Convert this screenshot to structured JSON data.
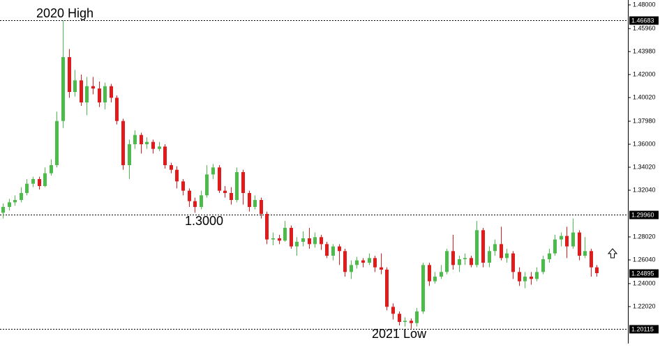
{
  "chart_data": {
    "type": "candlestick",
    "up_color": "#4cbb4c",
    "down_color": "#e01b1b",
    "open": [
      1.301,
      1.306,
      1.31,
      1.312,
      1.318,
      1.326,
      1.33,
      1.324,
      1.335,
      1.342,
      1.38,
      1.435,
      1.405,
      1.415,
      1.396,
      1.41,
      1.408,
      1.396,
      1.41,
      1.4,
      1.38,
      1.342,
      1.36,
      1.368,
      1.36,
      1.362,
      1.356,
      1.358,
      1.342,
      1.338,
      1.328,
      1.32,
      1.311,
      1.306,
      1.316,
      1.334,
      1.34,
      1.32,
      1.318,
      1.312,
      1.336,
      1.318,
      1.306,
      1.312,
      1.3,
      1.278,
      1.279,
      1.277,
      1.288,
      1.272,
      1.276,
      1.279,
      1.274,
      1.28,
      1.274,
      1.264,
      1.272,
      1.268,
      1.25,
      1.256,
      1.26,
      1.258,
      1.262,
      1.254,
      1.252,
      1.22,
      1.214,
      1.207,
      1.208,
      1.206,
      1.216,
      1.256,
      1.242,
      1.246,
      1.25,
      1.268,
      1.256,
      1.261,
      1.262,
      1.256,
      1.286,
      1.258,
      1.268,
      1.274,
      1.262,
      1.266,
      1.25,
      1.242,
      1.246,
      1.244,
      1.25,
      1.261,
      1.266,
      1.278,
      1.281,
      1.272,
      1.284,
      1.264,
      1.268,
      1.254
    ],
    "high": [
      1.309,
      1.313,
      1.316,
      1.323,
      1.33,
      1.332,
      1.332,
      1.34,
      1.347,
      1.388,
      1.4668,
      1.442,
      1.424,
      1.42,
      1.418,
      1.418,
      1.414,
      1.413,
      1.412,
      1.402,
      1.382,
      1.364,
      1.372,
      1.37,
      1.366,
      1.364,
      1.362,
      1.36,
      1.344,
      1.341,
      1.33,
      1.322,
      1.314,
      1.32,
      1.342,
      1.343,
      1.342,
      1.324,
      1.323,
      1.34,
      1.338,
      1.32,
      1.316,
      1.314,
      1.302,
      1.284,
      1.282,
      1.294,
      1.29,
      1.28,
      1.285,
      1.288,
      1.284,
      1.282,
      1.276,
      1.274,
      1.274,
      1.27,
      1.26,
      1.263,
      1.262,
      1.266,
      1.264,
      1.266,
      1.254,
      1.223,
      1.216,
      1.211,
      1.21,
      1.219,
      1.258,
      1.258,
      1.25,
      1.256,
      1.27,
      1.282,
      1.264,
      1.266,
      1.264,
      1.294,
      1.288,
      1.272,
      1.278,
      1.289,
      1.27,
      1.268,
      1.254,
      1.25,
      1.25,
      1.254,
      1.264,
      1.27,
      1.282,
      1.284,
      1.289,
      1.296,
      1.286,
      1.28,
      1.27,
      1.256
    ],
    "low": [
      1.296,
      1.303,
      1.307,
      1.31,
      1.316,
      1.323,
      1.321,
      1.323,
      1.333,
      1.34,
      1.374,
      1.4,
      1.401,
      1.393,
      1.385,
      1.403,
      1.392,
      1.39,
      1.396,
      1.377,
      1.338,
      1.33,
      1.356,
      1.352,
      1.356,
      1.352,
      1.354,
      1.339,
      1.335,
      1.322,
      1.316,
      1.306,
      1.301,
      1.304,
      1.314,
      1.33,
      1.318,
      1.314,
      1.308,
      1.31,
      1.308,
      1.302,
      1.304,
      1.296,
      1.274,
      1.273,
      1.274,
      1.276,
      1.27,
      1.264,
      1.272,
      1.27,
      1.271,
      1.269,
      1.262,
      1.26,
      1.256,
      1.246,
      1.244,
      1.253,
      1.254,
      1.256,
      1.25,
      1.248,
      1.217,
      1.209,
      1.204,
      1.203,
      1.2012,
      1.203,
      1.214,
      1.238,
      1.24,
      1.244,
      1.248,
      1.252,
      1.25,
      1.256,
      1.254,
      1.254,
      1.254,
      1.254,
      1.264,
      1.26,
      1.258,
      1.244,
      1.238,
      1.236,
      1.239,
      1.242,
      1.248,
      1.258,
      1.264,
      1.272,
      1.262,
      1.27,
      1.26,
      1.262,
      1.246,
      1.246
    ],
    "close": [
      1.306,
      1.31,
      1.312,
      1.318,
      1.326,
      1.33,
      1.324,
      1.335,
      1.342,
      1.38,
      1.435,
      1.405,
      1.415,
      1.396,
      1.41,
      1.408,
      1.396,
      1.41,
      1.4,
      1.38,
      1.342,
      1.36,
      1.368,
      1.36,
      1.362,
      1.356,
      1.358,
      1.342,
      1.338,
      1.328,
      1.32,
      1.311,
      1.306,
      1.316,
      1.334,
      1.34,
      1.32,
      1.318,
      1.312,
      1.336,
      1.318,
      1.306,
      1.312,
      1.3,
      1.278,
      1.279,
      1.277,
      1.288,
      1.272,
      1.276,
      1.279,
      1.274,
      1.28,
      1.274,
      1.264,
      1.272,
      1.268,
      1.25,
      1.256,
      1.26,
      1.258,
      1.262,
      1.254,
      1.252,
      1.22,
      1.214,
      1.207,
      1.208,
      1.206,
      1.216,
      1.256,
      1.242,
      1.246,
      1.25,
      1.268,
      1.256,
      1.261,
      1.262,
      1.256,
      1.286,
      1.258,
      1.268,
      1.274,
      1.262,
      1.266,
      1.25,
      1.242,
      1.246,
      1.244,
      1.25,
      1.261,
      1.266,
      1.278,
      1.281,
      1.272,
      1.284,
      1.264,
      1.268,
      1.254,
      1.249
    ],
    "ylim": [
      1.1884,
      1.4842
    ],
    "yticks": [
      {
        "value": 1.48,
        "label": "1.48000"
      },
      {
        "value": 1.4596,
        "label": "1.45960"
      },
      {
        "value": 1.4398,
        "label": "1.43980"
      },
      {
        "value": 1.42,
        "label": "1.42000"
      },
      {
        "value": 1.4002,
        "label": "1.40020"
      },
      {
        "value": 1.3798,
        "label": "1.37980"
      },
      {
        "value": 1.36,
        "label": "1.36000"
      },
      {
        "value": 1.3402,
        "label": "1.34020"
      },
      {
        "value": 1.3204,
        "label": "1.32040"
      },
      {
        "value": 1.2802,
        "label": "1.28020"
      },
      {
        "value": 1.2604,
        "label": "1.26040"
      },
      {
        "value": 1.24,
        "label": "1.24000"
      },
      {
        "value": 1.2202,
        "label": "1.22020"
      }
    ],
    "levels": [
      {
        "value": 1.46683,
        "label": "1.46683",
        "line": true
      },
      {
        "value": 1.2996,
        "label": "1.29960",
        "line": true
      },
      {
        "value": 1.24895,
        "label": "1.24895",
        "line": false
      },
      {
        "value": 1.20115,
        "label": "1.20115",
        "line": true
      }
    ],
    "annotations": [
      "2020 High",
      "1.3000",
      "2021 Low"
    ]
  }
}
